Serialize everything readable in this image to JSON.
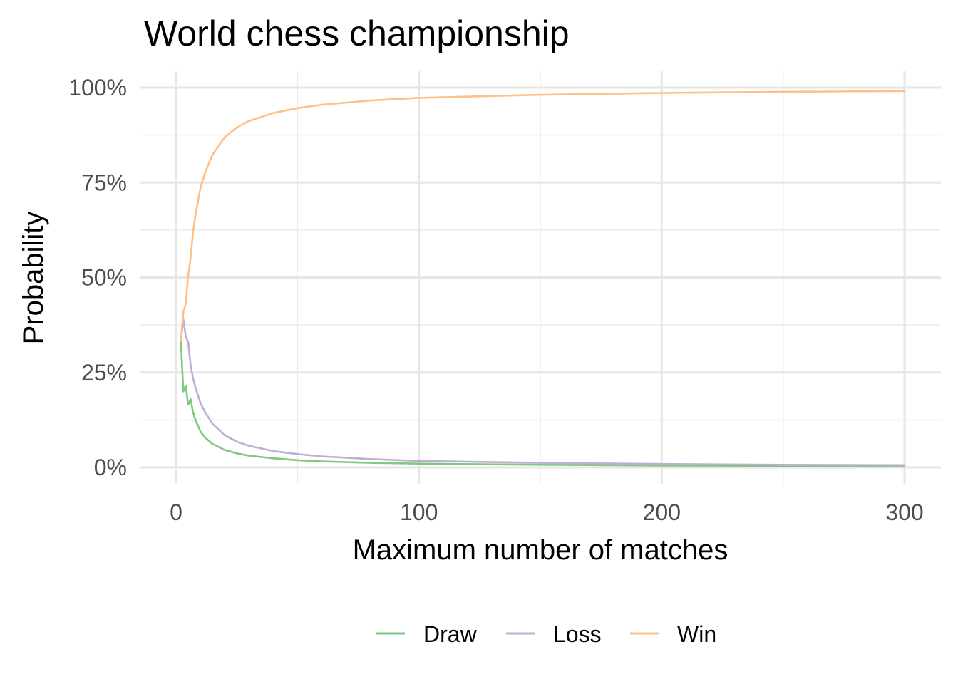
{
  "chart_data": {
    "type": "line",
    "title": "World chess championship",
    "xlabel": "Maximum number of matches",
    "ylabel": "Probability",
    "xlim": [
      0,
      300
    ],
    "ylim": [
      0,
      1
    ],
    "x_ticks": [
      0,
      100,
      200,
      300
    ],
    "x_tick_labels": [
      "0",
      "100",
      "200",
      "300"
    ],
    "y_ticks": [
      0,
      0.25,
      0.5,
      0.75,
      1.0
    ],
    "y_tick_labels": [
      "0%",
      "25%",
      "50%",
      "75%",
      "100%"
    ],
    "grid": true,
    "legend_position": "bottom",
    "x": [
      2,
      3,
      4,
      5,
      6,
      7,
      8,
      10,
      12,
      15,
      20,
      25,
      30,
      40,
      50,
      60,
      80,
      100,
      150,
      200,
      250,
      300
    ],
    "series": [
      {
        "name": "Draw",
        "color": "#7fc97f",
        "values": [
          0.333,
          0.2,
          0.215,
          0.165,
          0.18,
          0.145,
          0.125,
          0.095,
          0.078,
          0.062,
          0.046,
          0.037,
          0.031,
          0.024,
          0.019,
          0.016,
          0.012,
          0.01,
          0.007,
          0.005,
          0.004,
          0.003
        ]
      },
      {
        "name": "Loss",
        "color": "#beaed4",
        "values": [
          0.333,
          0.39,
          0.345,
          0.33,
          0.27,
          0.235,
          0.21,
          0.17,
          0.145,
          0.115,
          0.085,
          0.068,
          0.057,
          0.043,
          0.035,
          0.029,
          0.022,
          0.017,
          0.012,
          0.009,
          0.007,
          0.006
        ]
      },
      {
        "name": "Win",
        "color": "#fdc086",
        "values": [
          0.333,
          0.41,
          0.43,
          0.505,
          0.55,
          0.62,
          0.665,
          0.735,
          0.777,
          0.823,
          0.869,
          0.895,
          0.912,
          0.933,
          0.946,
          0.955,
          0.966,
          0.973,
          0.981,
          0.986,
          0.989,
          0.991
        ]
      }
    ]
  }
}
